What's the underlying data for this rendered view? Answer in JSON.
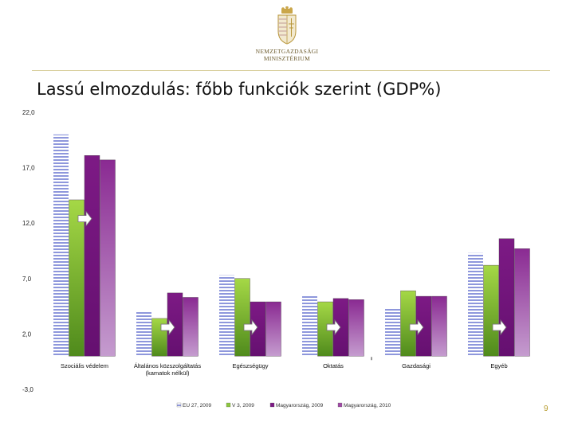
{
  "header": {
    "ministry_line1": "NEMZETGAZDASÁGI",
    "ministry_line2": "MINISZTÉRIUM"
  },
  "slide": {
    "title": "Lassú elmozdulás: főbb funkciók szerint (GDP%)",
    "page_number": "9"
  },
  "colors": {
    "series_hatched_stripe": "#8e97dc",
    "series_green": "#8dc63f",
    "series_purple": "#7d1a85",
    "series_purple_light": "#a04aa6",
    "arrow_fill": "#ffffff",
    "arrow_stroke": "#777777"
  },
  "chart_data": {
    "type": "bar",
    "title": "",
    "xlabel": "",
    "ylabel": "",
    "ylim": [
      -3,
      22
    ],
    "y_ticks": [
      -3,
      2,
      7,
      12,
      17,
      22
    ],
    "y_tick_labels": [
      "-3,0",
      "2,0",
      "7,0",
      "12,0",
      "17,0",
      "22,0"
    ],
    "grid": false,
    "legend_position": "bottom",
    "categories": [
      "Szociális védelem",
      "Általános közszolgáltatás (kamatok nélkül)",
      "Egészségügy",
      "Oktatás",
      "Gazdasági",
      "Egyéb"
    ],
    "category_label_lines": [
      [
        "Szociális védelem"
      ],
      [
        "Általános közszolgáltatás",
        "(kamatok nélkül)"
      ],
      [
        "Egészségügy"
      ],
      [
        "Oktatás"
      ],
      [
        "Gazdasági"
      ],
      [
        "Egyéb"
      ]
    ],
    "series": [
      {
        "name": "EU 27, 2009",
        "values": [
          20.0,
          4.0,
          7.3,
          5.5,
          4.3,
          9.3
        ]
      },
      {
        "name": "V 3, 2009",
        "values": [
          14.1,
          3.4,
          7.0,
          4.9,
          5.9,
          8.2
        ]
      },
      {
        "name": "Magyarország, 2009",
        "values": [
          18.1,
          5.7,
          4.9,
          5.2,
          5.4,
          10.6
        ]
      },
      {
        "name": "Magyarország, 2010",
        "values": [
          17.7,
          5.3,
          4.9,
          5.1,
          5.4,
          9.7
        ]
      }
    ],
    "arrow_markers": "right-pointing arrow between the two Hungarian bars in each group"
  }
}
